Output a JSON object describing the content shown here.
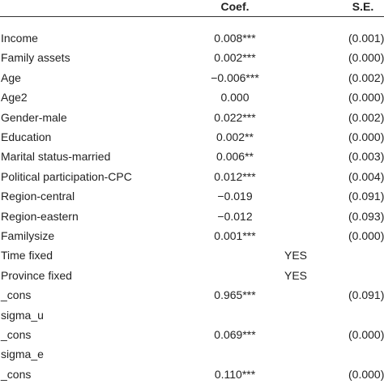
{
  "header": {
    "coef": "Coef.",
    "se": "S.E."
  },
  "rows": [
    {
      "variable": "Income",
      "coef": "0.008***",
      "fixed": "",
      "se": "(0.001)"
    },
    {
      "variable": "Family assets",
      "coef": "0.002***",
      "fixed": "",
      "se": "(0.000)"
    },
    {
      "variable": "Age",
      "coef": "−0.006***",
      "fixed": "",
      "se": "(0.002)"
    },
    {
      "variable": "Age2",
      "coef": "0.000",
      "fixed": "",
      "se": "(0.000)"
    },
    {
      "variable": "Gender-male",
      "coef": "0.022***",
      "fixed": "",
      "se": "(0.002)"
    },
    {
      "variable": "Education",
      "coef": "0.002**",
      "fixed": "",
      "se": "(0.000)"
    },
    {
      "variable": "Marital status-married",
      "coef": "0.006**",
      "fixed": "",
      "se": "(0.003)"
    },
    {
      "variable": "Political participation-CPC",
      "coef": "0.012***",
      "fixed": "",
      "se": "(0.004)"
    },
    {
      "variable": "Region-central",
      "coef": "−0.019",
      "fixed": "",
      "se": "(0.091)"
    },
    {
      "variable": "Region-eastern",
      "coef": "−0.012",
      "fixed": "",
      "se": "(0.093)"
    },
    {
      "variable": "Familysize",
      "coef": "0.001***",
      "fixed": "",
      "se": "(0.000)"
    },
    {
      "variable": "Time fixed",
      "coef": "",
      "fixed": "YES",
      "se": ""
    },
    {
      "variable": "Province fixed",
      "coef": "",
      "fixed": "YES",
      "se": ""
    },
    {
      "variable": "_cons",
      "coef": "0.965***",
      "fixed": "",
      "se": "(0.091)"
    },
    {
      "variable": "sigma_u",
      "coef": "",
      "fixed": "",
      "se": ""
    },
    {
      "variable": "_cons",
      "coef": "0.069***",
      "fixed": "",
      "se": "(0.000)"
    },
    {
      "variable": "sigma_e",
      "coef": "",
      "fixed": "",
      "se": ""
    },
    {
      "variable": "_cons",
      "coef": "0.110***",
      "fixed": "",
      "se": "(0.000)"
    }
  ]
}
